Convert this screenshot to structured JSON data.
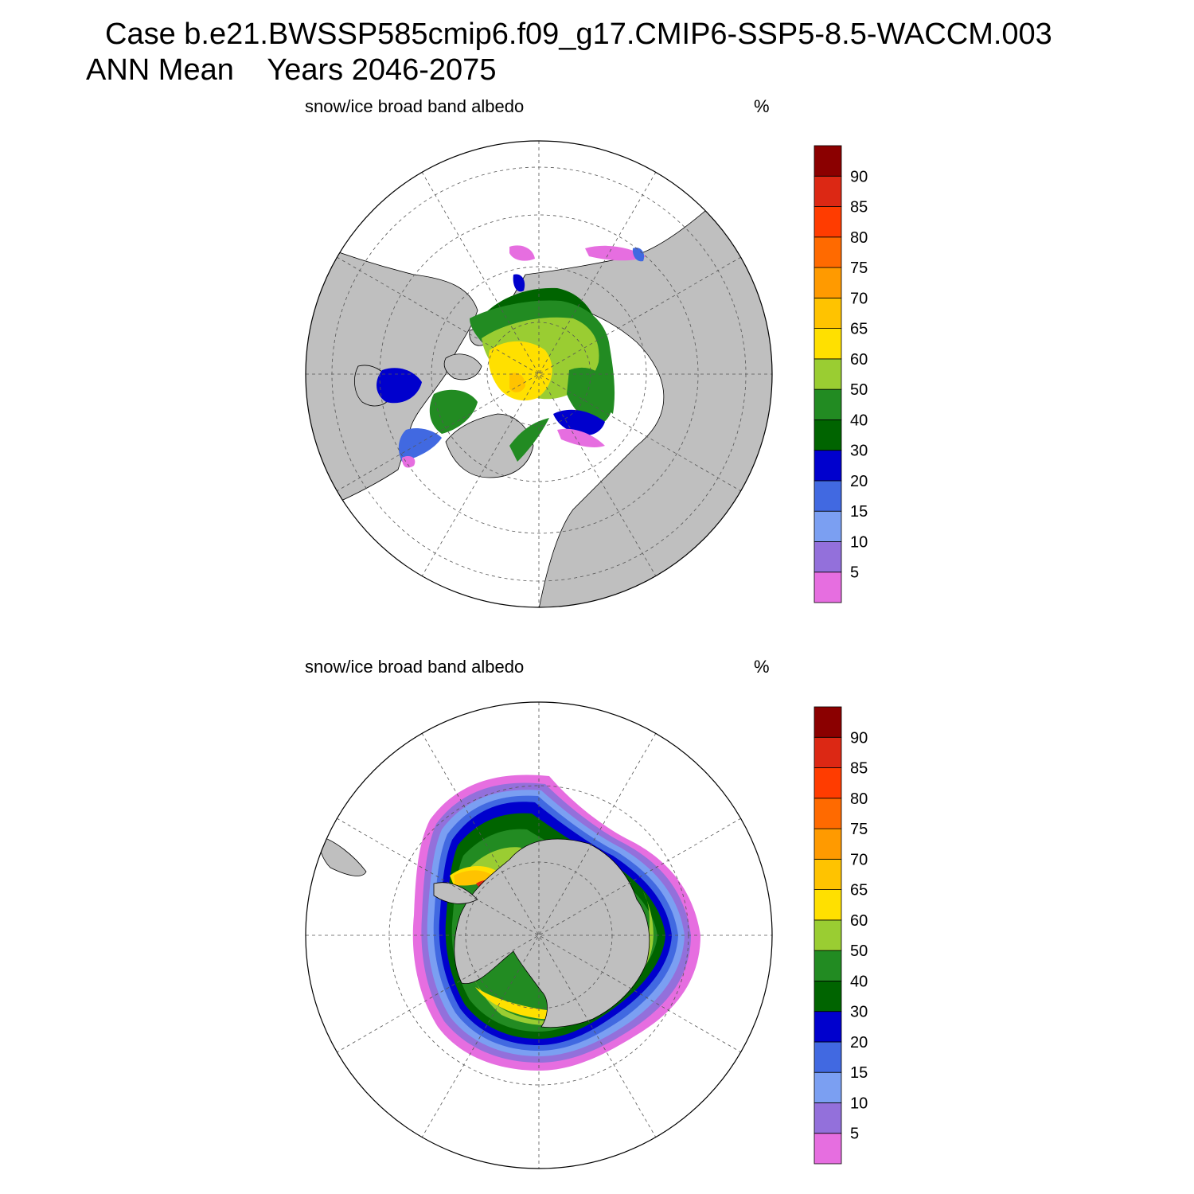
{
  "title_line1": "Case b.e21.BWSSP585cmip6.f09_g17.CMIP6-SSP5-8.5-WACCM.003",
  "title_line2": "ANN Mean    Years 2046-2075",
  "colors": {
    "land": "#bfbfbf",
    "ocean": "#ffffff",
    "levels": [
      "#e66ee0",
      "#9370db",
      "#7b9ff2",
      "#4169e1",
      "#0000cd",
      "#006400",
      "#228b22",
      "#9acd32",
      "#ffe000",
      "#ffc300",
      "#ff9a00",
      "#ff6a00",
      "#ff3c00",
      "#dc2814",
      "#8b0000"
    ]
  },
  "panels": [
    {
      "id": "north",
      "left_label": "snow/ice broad band albedo",
      "right_label": "%",
      "colorbar_labels": [
        "90",
        "85",
        "80",
        "75",
        "70",
        "65",
        "60",
        "50",
        "40",
        "30",
        "20",
        "15",
        "10",
        "5"
      ]
    },
    {
      "id": "south",
      "left_label": "snow/ice broad band albedo",
      "right_label": "%",
      "colorbar_labels": [
        "90",
        "85",
        "80",
        "75",
        "70",
        "65",
        "60",
        "50",
        "40",
        "30",
        "20",
        "15",
        "10",
        "5"
      ]
    }
  ]
}
